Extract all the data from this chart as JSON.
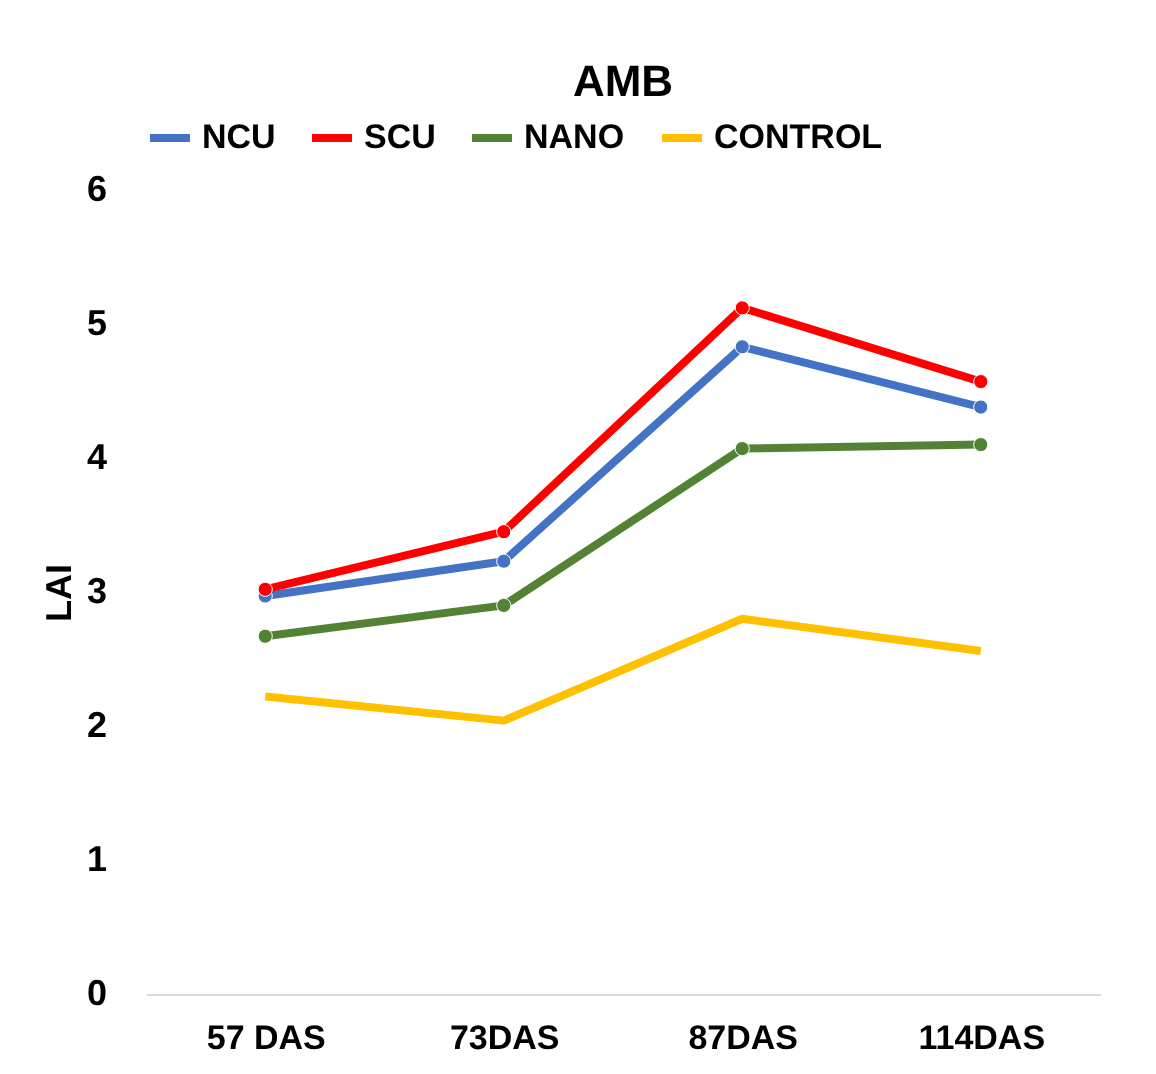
{
  "chart_data": {
    "type": "line",
    "title": "AMB",
    "ylabel": "LAI",
    "categories": [
      "57 DAS",
      "73DAS",
      "87DAS",
      "114DAS"
    ],
    "series": [
      {
        "name": "NCU",
        "color": "#4472c4",
        "marker": "circle",
        "values": [
          2.97,
          3.23,
          4.83,
          4.38
        ]
      },
      {
        "name": "SCU",
        "color": "#ff0000",
        "marker": "circle",
        "values": [
          3.02,
          3.45,
          5.12,
          4.57
        ]
      },
      {
        "name": "NANO",
        "color": "#548235",
        "marker": "circle",
        "values": [
          2.67,
          2.9,
          4.07,
          4.1
        ]
      },
      {
        "name": "CONTROL",
        "color": "#ffc000",
        "marker": "none",
        "values": [
          2.22,
          2.04,
          2.8,
          2.56
        ]
      }
    ],
    "ylim": [
      0,
      6
    ],
    "yticks": [
      0,
      1,
      2,
      3,
      4,
      5,
      6
    ],
    "grid": false,
    "legend": "top",
    "line_style": "solid"
  }
}
